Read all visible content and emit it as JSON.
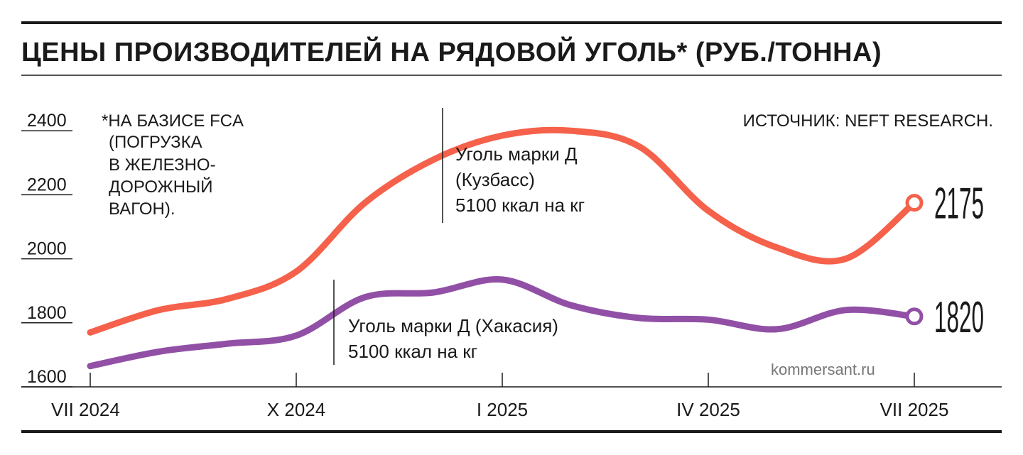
{
  "title": "ЦЕНЫ ПРОИЗВОДИТЕЛЕЙ НА РЯДОВОЙ УГОЛЬ* (РУБ./ТОННА)",
  "footnote_lines": [
    "*НА БАЗИСЕ FCA",
    "(ПОГРУЗКА",
    "В ЖЕЛЕЗНО-",
    "ДОРОЖНЫЙ",
    "ВАГОН)."
  ],
  "source": "ИСТОЧНИК: NEFT RESEARCH.",
  "credit": "kommersant.ru",
  "colors": {
    "kuzbass": "#F5614A",
    "khakasia": "#9150A6",
    "text": "#1a1a1a"
  },
  "chart_data": {
    "type": "line",
    "x_labels": [
      "VII 2024",
      "X 2024",
      "I 2025",
      "IV 2025",
      "VII 2025"
    ],
    "x_label_positions": [
      0,
      3,
      6,
      9,
      12
    ],
    "y_ticks": [
      2400,
      2200,
      2000,
      1800,
      1600
    ],
    "ylim": [
      1600,
      2420
    ],
    "xlim": [
      0,
      12
    ],
    "series": [
      {
        "key": "kuzbass",
        "label_lines": [
          "Уголь марки Д",
          "(Кузбасс)",
          "5100 ккал на кг"
        ],
        "end_value": "2175",
        "points": [
          [
            0,
            1770
          ],
          [
            1,
            1840
          ],
          [
            2,
            1875
          ],
          [
            3,
            1960
          ],
          [
            4,
            2175
          ],
          [
            5,
            2310
          ],
          [
            6,
            2385
          ],
          [
            7,
            2400
          ],
          [
            8,
            2350
          ],
          [
            9,
            2150
          ],
          [
            10,
            2035
          ],
          [
            11,
            2000
          ],
          [
            12,
            2175
          ]
        ]
      },
      {
        "key": "khakasia",
        "label_lines": [
          "Уголь марки Д (Хакасия)",
          "5100 ккал на кг"
        ],
        "end_value": "1820",
        "points": [
          [
            0,
            1665
          ],
          [
            1,
            1710
          ],
          [
            2,
            1735
          ],
          [
            3,
            1760
          ],
          [
            4,
            1880
          ],
          [
            5,
            1895
          ],
          [
            6,
            1935
          ],
          [
            7,
            1855
          ],
          [
            8,
            1815
          ],
          [
            9,
            1810
          ],
          [
            10,
            1780
          ],
          [
            11,
            1840
          ],
          [
            12,
            1820
          ]
        ]
      }
    ]
  }
}
